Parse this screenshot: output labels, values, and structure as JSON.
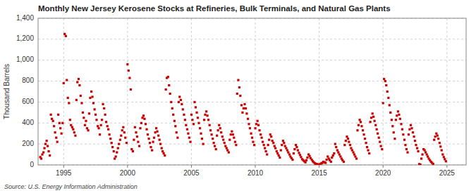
{
  "chart_data": {
    "type": "scatter",
    "title": "Monthly New Jersey Kerosene Stocks at Refineries, Bulk Terminals, and Natural Gas Plants",
    "ylabel": "Thousand Barrels",
    "annotation": "Source: U.S. Energy Information Administration",
    "color": "#cc0000",
    "marker": "square",
    "grid": true,
    "xlim": [
      1993.0,
      2026.5
    ],
    "ylim": [
      0,
      1400
    ],
    "xticks": [
      1995,
      2000,
      2005,
      2010,
      2015,
      2020,
      2025
    ],
    "yticks": [
      0,
      200,
      400,
      600,
      800,
      {
        "value": 1000,
        "label": "1,000"
      },
      {
        "value": 1200,
        "label": "1,200"
      },
      {
        "value": 1400,
        "label": "1,400"
      }
    ],
    "x": [
      1993.17,
      1993.25,
      1993.33,
      1993.42,
      1993.5,
      1993.58,
      1993.67,
      1993.75,
      1993.83,
      1993.92,
      1994.0,
      1994.08,
      1994.17,
      1994.25,
      1994.33,
      1994.42,
      1994.5,
      1994.58,
      1994.67,
      1994.75,
      1994.83,
      1994.92,
      1995.0,
      1995.08,
      1995.17,
      1995.25,
      1995.33,
      1995.42,
      1995.5,
      1995.58,
      1995.67,
      1995.75,
      1995.83,
      1995.92,
      1996.0,
      1996.08,
      1996.17,
      1996.25,
      1996.33,
      1996.42,
      1996.5,
      1996.58,
      1996.67,
      1996.75,
      1996.83,
      1996.92,
      1997.0,
      1997.08,
      1997.17,
      1997.25,
      1997.33,
      1997.42,
      1997.5,
      1997.58,
      1997.67,
      1997.75,
      1997.83,
      1997.92,
      1998.0,
      1998.08,
      1998.17,
      1998.25,
      1998.33,
      1998.42,
      1998.5,
      1998.58,
      1998.67,
      1998.75,
      1998.83,
      1998.92,
      1999.0,
      1999.08,
      1999.17,
      1999.25,
      1999.33,
      1999.42,
      1999.5,
      1999.58,
      1999.67,
      1999.75,
      1999.83,
      1999.92,
      2000.0,
      2000.08,
      2000.17,
      2000.25,
      2000.33,
      2000.42,
      2000.5,
      2000.58,
      2000.67,
      2000.75,
      2000.83,
      2000.92,
      2001.0,
      2001.08,
      2001.17,
      2001.25,
      2001.33,
      2001.42,
      2001.5,
      2001.58,
      2001.67,
      2001.75,
      2001.83,
      2001.92,
      2002.0,
      2002.08,
      2002.17,
      2002.25,
      2002.33,
      2002.42,
      2002.5,
      2002.58,
      2002.67,
      2002.75,
      2002.83,
      2002.92,
      2003.0,
      2003.08,
      2003.17,
      2003.25,
      2003.33,
      2003.42,
      2003.5,
      2003.58,
      2003.67,
      2003.75,
      2003.83,
      2003.92,
      2004.0,
      2004.08,
      2004.17,
      2004.25,
      2004.33,
      2004.42,
      2004.5,
      2004.58,
      2004.67,
      2004.75,
      2004.83,
      2004.92,
      2005.0,
      2005.08,
      2005.17,
      2005.25,
      2005.33,
      2005.42,
      2005.5,
      2005.58,
      2005.67,
      2005.75,
      2005.83,
      2005.92,
      2006.0,
      2006.08,
      2006.17,
      2006.25,
      2006.33,
      2006.42,
      2006.5,
      2006.58,
      2006.67,
      2006.75,
      2006.83,
      2006.92,
      2007.0,
      2007.08,
      2007.17,
      2007.25,
      2007.33,
      2007.42,
      2007.5,
      2007.58,
      2007.67,
      2007.75,
      2007.83,
      2007.92,
      2008.0,
      2008.08,
      2008.17,
      2008.25,
      2008.33,
      2008.42,
      2008.5,
      2008.58,
      2008.67,
      2008.75,
      2008.83,
      2008.92,
      2009.0,
      2009.08,
      2009.17,
      2009.25,
      2009.33,
      2009.42,
      2009.5,
      2009.58,
      2009.67,
      2009.75,
      2009.83,
      2009.92,
      2010.0,
      2010.08,
      2010.17,
      2010.25,
      2010.33,
      2010.42,
      2010.5,
      2010.58,
      2010.67,
      2010.75,
      2010.83,
      2010.92,
      2011.0,
      2011.08,
      2011.17,
      2011.25,
      2011.33,
      2011.42,
      2011.5,
      2011.58,
      2011.67,
      2011.75,
      2011.83,
      2011.92,
      2012.0,
      2012.08,
      2012.17,
      2012.25,
      2012.33,
      2012.42,
      2012.5,
      2012.58,
      2012.67,
      2012.75,
      2012.83,
      2012.92,
      2013.0,
      2013.08,
      2013.17,
      2013.25,
      2013.33,
      2013.42,
      2013.5,
      2013.58,
      2013.67,
      2013.75,
      2013.83,
      2013.92,
      2014.0,
      2014.08,
      2014.17,
      2014.25,
      2014.33,
      2014.42,
      2014.5,
      2014.58,
      2014.67,
      2014.75,
      2014.83,
      2014.92,
      2015.0,
      2015.08,
      2015.17,
      2015.25,
      2015.33,
      2015.42,
      2015.5,
      2015.58,
      2015.67,
      2015.75,
      2015.83,
      2015.92,
      2016.0,
      2016.08,
      2016.17,
      2016.25,
      2016.33,
      2016.42,
      2016.5,
      2016.58,
      2016.67,
      2016.75,
      2016.83,
      2016.92,
      2017.0,
      2017.08,
      2017.17,
      2017.25,
      2017.33,
      2017.42,
      2017.5,
      2017.58,
      2017.67,
      2017.75,
      2017.83,
      2017.92,
      2018.0,
      2018.08,
      2018.17,
      2018.25,
      2018.33,
      2018.42,
      2018.5,
      2018.58,
      2018.67,
      2018.75,
      2018.83,
      2018.92,
      2019.0,
      2019.08,
      2019.17,
      2019.25,
      2019.33,
      2019.42,
      2019.5,
      2019.58,
      2019.67,
      2019.75,
      2019.83,
      2019.92,
      2020.0,
      2020.08,
      2020.17,
      2020.25,
      2020.33,
      2020.42,
      2020.5,
      2020.58,
      2020.67,
      2020.75,
      2020.83,
      2020.92,
      2021.0,
      2021.08,
      2021.17,
      2021.25,
      2021.33,
      2021.42,
      2021.5,
      2021.58,
      2021.67,
      2021.75,
      2021.83,
      2021.92,
      2022.0,
      2022.08,
      2022.17,
      2022.25,
      2022.33,
      2022.42,
      2022.5,
      2022.58,
      2022.67,
      2022.75,
      2022.83,
      2022.92,
      2023.0,
      2023.08,
      2023.17,
      2023.25,
      2023.33,
      2023.42,
      2023.5,
      2023.58,
      2023.67,
      2023.75,
      2023.83,
      2023.92,
      2024.0,
      2024.08,
      2024.17,
      2024.25,
      2024.33,
      2024.42,
      2024.5,
      2024.58,
      2024.67,
      2024.75,
      2024.83,
      2024.92
    ],
    "values": [
      75,
      60,
      100,
      120,
      160,
      200,
      230,
      180,
      130,
      90,
      480,
      440,
      420,
      370,
      310,
      260,
      220,
      480,
      400,
      350,
      300,
      400,
      780,
      1250,
      1230,
      810,
      640,
      590,
      430,
      380,
      360,
      340,
      310,
      280,
      620,
      790,
      820,
      760,
      660,
      590,
      500,
      450,
      380,
      420,
      350,
      330,
      490,
      640,
      700,
      650,
      590,
      530,
      480,
      430,
      370,
      350,
      290,
      380,
      430,
      580,
      540,
      480,
      410,
      370,
      340,
      290,
      250,
      210,
      170,
      130,
      60,
      80,
      120,
      160,
      200,
      240,
      280,
      330,
      360,
      310,
      260,
      210,
      960,
      900,
      830,
      720,
      150,
      130,
      240,
      360,
      310,
      270,
      220,
      180,
      350,
      400,
      450,
      470,
      440,
      390,
      340,
      290,
      250,
      210,
      170,
      140,
      220,
      260,
      310,
      350,
      320,
      280,
      240,
      200,
      160,
      130,
      110,
      90,
      720,
      830,
      840,
      760,
      680,
      600,
      540,
      480,
      420,
      370,
      310,
      260,
      600,
      650,
      620,
      580,
      530,
      480,
      430,
      380,
      340,
      300,
      260,
      220,
      480,
      430,
      390,
      600,
      550,
      500,
      450,
      400,
      350,
      300,
      250,
      200,
      430,
      480,
      510,
      470,
      430,
      380,
      330,
      290,
      250,
      210,
      180,
      150,
      280,
      330,
      380,
      350,
      310,
      270,
      240,
      210,
      180,
      160,
      140,
      120,
      240,
      290,
      320,
      290,
      260,
      220,
      190,
      680,
      810,
      740,
      660,
      570,
      500,
      540,
      580,
      540,
      490,
      440,
      390,
      350,
      300,
      260,
      220,
      190,
      350,
      390,
      420,
      380,
      330,
      290,
      260,
      220,
      190,
      160,
      130,
      100,
      190,
      240,
      290,
      270,
      230,
      210,
      180,
      160,
      130,
      110,
      90,
      70,
      140,
      190,
      230,
      210,
      180,
      160,
      140,
      120,
      100,
      80,
      65,
      50,
      110,
      150,
      190,
      170,
      140,
      115,
      95,
      75,
      55,
      45,
      35,
      25,
      45,
      70,
      100,
      85,
      65,
      50,
      35,
      25,
      15,
      10,
      8,
      5,
      3,
      8,
      15,
      20,
      30,
      25,
      20,
      50,
      80,
      60,
      45,
      30,
      70,
      90,
      110,
      200,
      170,
      140,
      120,
      100,
      80,
      60,
      45,
      30,
      190,
      230,
      270,
      250,
      220,
      190,
      160,
      140,
      120,
      100,
      80,
      60,
      330,
      380,
      430,
      410,
      370,
      330,
      290,
      250,
      210,
      170,
      140,
      110,
      410,
      450,
      490,
      460,
      420,
      380,
      340,
      300,
      260,
      220,
      180,
      150,
      590,
      820,
      800,
      760,
      700,
      640,
      570,
      500,
      430,
      370,
      310,
      250,
      430,
      470,
      510,
      480,
      440,
      390,
      340,
      290,
      240,
      190,
      150,
      120,
      290,
      340,
      380,
      350,
      310,
      270,
      230,
      190,
      160,
      130,
      8,
      3,
      60,
      100,
      150,
      140,
      120,
      100,
      80,
      60,
      45,
      30,
      20,
      10,
      240,
      270,
      300,
      280,
      250,
      210,
      175,
      140,
      100,
      75,
      55,
      35
    ]
  }
}
